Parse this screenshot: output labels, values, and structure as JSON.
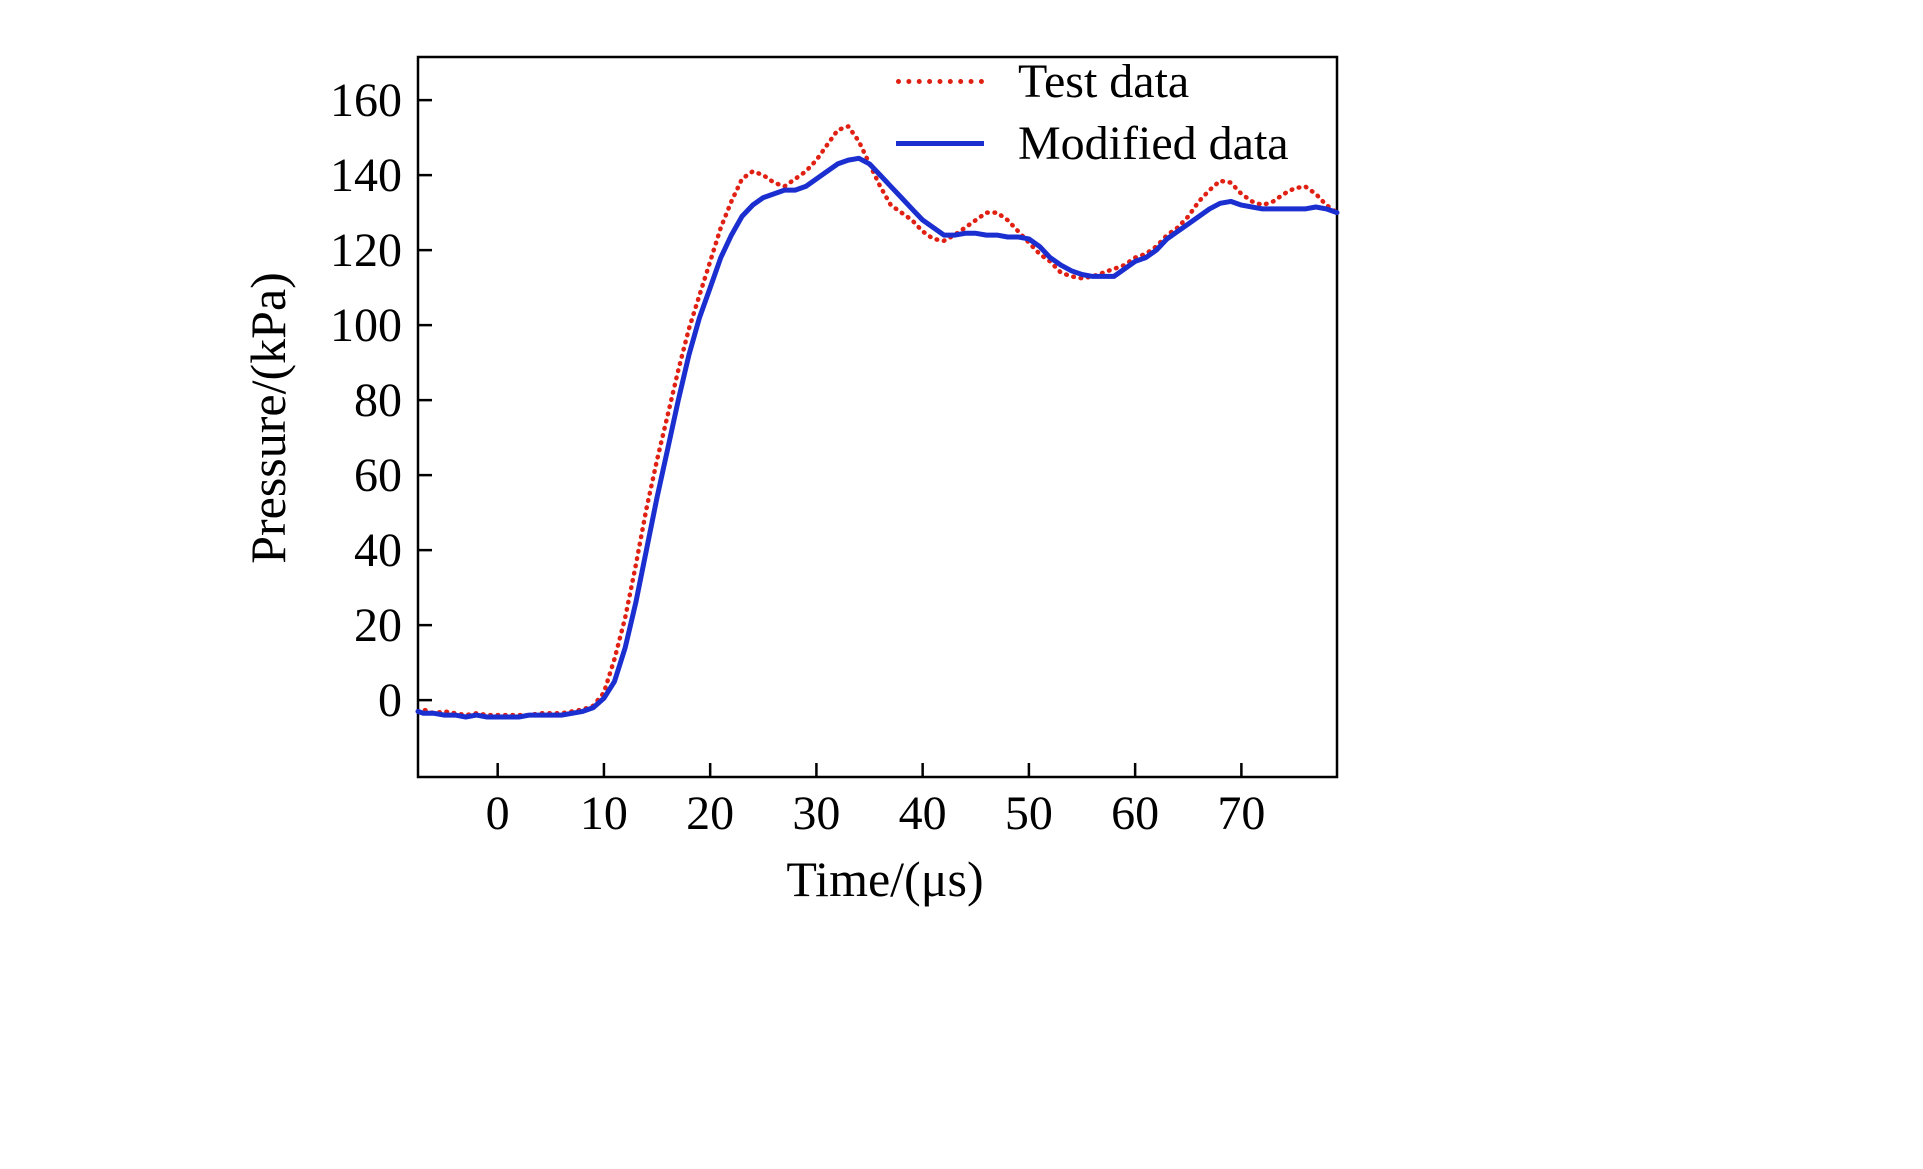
{
  "chart_data": {
    "type": "line",
    "title": "",
    "xlabel": "Time/(μs)",
    "ylabel": "Pressure/(kPa)",
    "xlim": [
      -7.5,
      79
    ],
    "ylim": [
      -20.5,
      171.5
    ],
    "xticks": [
      0,
      10,
      20,
      30,
      40,
      50,
      60,
      70
    ],
    "yticks": [
      0,
      20,
      40,
      60,
      80,
      100,
      120,
      140,
      160
    ],
    "grid": false,
    "legend_position": "top-right-inside",
    "series": [
      {
        "name": "Test data",
        "color": "#e02012",
        "line_style": "dotted",
        "points": [
          [
            -7.5,
            -3
          ],
          [
            -7,
            -2.5
          ],
          [
            -6,
            -3.5
          ],
          [
            -5,
            -3
          ],
          [
            -4,
            -3.5
          ],
          [
            -3,
            -4
          ],
          [
            -2,
            -3.5
          ],
          [
            -1,
            -4
          ],
          [
            0,
            -4
          ],
          [
            1,
            -4
          ],
          [
            2,
            -4
          ],
          [
            3,
            -4
          ],
          [
            4,
            -3.5
          ],
          [
            5,
            -3.5
          ],
          [
            6,
            -3.5
          ],
          [
            7,
            -3
          ],
          [
            8,
            -2.5
          ],
          [
            9,
            -1.5
          ],
          [
            10,
            2
          ],
          [
            11,
            11
          ],
          [
            12,
            22
          ],
          [
            13,
            36
          ],
          [
            14,
            51
          ],
          [
            15,
            64
          ],
          [
            16,
            76
          ],
          [
            17,
            88
          ],
          [
            18,
            99
          ],
          [
            19,
            108
          ],
          [
            20,
            117
          ],
          [
            21,
            126
          ],
          [
            22,
            133
          ],
          [
            23,
            139
          ],
          [
            24,
            141
          ],
          [
            25,
            140
          ],
          [
            26,
            138
          ],
          [
            27,
            137
          ],
          [
            28,
            139
          ],
          [
            29,
            141
          ],
          [
            30,
            144
          ],
          [
            31,
            148
          ],
          [
            32,
            152
          ],
          [
            33,
            153
          ],
          [
            34,
            149
          ],
          [
            35,
            143
          ],
          [
            36,
            137
          ],
          [
            37,
            132
          ],
          [
            38,
            130
          ],
          [
            39,
            128
          ],
          [
            40,
            125
          ],
          [
            41,
            123
          ],
          [
            42,
            122.5
          ],
          [
            43,
            124
          ],
          [
            44,
            126
          ],
          [
            45,
            128
          ],
          [
            46,
            130
          ],
          [
            47,
            130
          ],
          [
            48,
            128
          ],
          [
            49,
            125
          ],
          [
            50,
            122
          ],
          [
            51,
            119
          ],
          [
            52,
            117
          ],
          [
            53,
            114
          ],
          [
            54,
            113
          ],
          [
            55,
            112.5
          ],
          [
            56,
            113
          ],
          [
            57,
            114
          ],
          [
            58,
            115
          ],
          [
            59,
            116
          ],
          [
            60,
            118
          ],
          [
            61,
            119
          ],
          [
            62,
            121
          ],
          [
            63,
            124
          ],
          [
            64,
            126
          ],
          [
            65,
            129
          ],
          [
            66,
            133
          ],
          [
            67,
            136
          ],
          [
            68,
            138.5
          ],
          [
            69,
            138
          ],
          [
            70,
            135
          ],
          [
            71,
            133
          ],
          [
            72,
            132
          ],
          [
            73,
            133
          ],
          [
            74,
            135
          ],
          [
            75,
            136.5
          ],
          [
            76,
            137
          ],
          [
            77,
            135
          ],
          [
            78,
            132
          ],
          [
            79,
            130
          ]
        ]
      },
      {
        "name": "Modified data",
        "color": "#1b2fd0",
        "line_style": "solid",
        "points": [
          [
            -7.5,
            -3
          ],
          [
            -7,
            -3.5
          ],
          [
            -6,
            -3.5
          ],
          [
            -5,
            -4
          ],
          [
            -4,
            -4
          ],
          [
            -3,
            -4.5
          ],
          [
            -2,
            -4
          ],
          [
            -1,
            -4.5
          ],
          [
            0,
            -4.5
          ],
          [
            1,
            -4.5
          ],
          [
            2,
            -4.5
          ],
          [
            3,
            -4
          ],
          [
            4,
            -4
          ],
          [
            5,
            -4
          ],
          [
            6,
            -4
          ],
          [
            7,
            -3.5
          ],
          [
            8,
            -3
          ],
          [
            9,
            -2
          ],
          [
            10,
            0.5
          ],
          [
            11,
            5
          ],
          [
            12,
            14
          ],
          [
            13,
            26
          ],
          [
            14,
            40
          ],
          [
            15,
            54
          ],
          [
            16,
            67
          ],
          [
            17,
            80
          ],
          [
            18,
            92
          ],
          [
            19,
            102
          ],
          [
            20,
            110
          ],
          [
            21,
            118
          ],
          [
            22,
            124
          ],
          [
            23,
            129
          ],
          [
            24,
            132
          ],
          [
            25,
            134
          ],
          [
            26,
            135
          ],
          [
            27,
            136
          ],
          [
            28,
            136
          ],
          [
            29,
            137
          ],
          [
            30,
            139
          ],
          [
            31,
            141
          ],
          [
            32,
            143
          ],
          [
            33,
            144
          ],
          [
            34,
            144.5
          ],
          [
            35,
            143
          ],
          [
            36,
            140
          ],
          [
            37,
            137
          ],
          [
            38,
            134
          ],
          [
            39,
            131
          ],
          [
            40,
            128
          ],
          [
            41,
            126
          ],
          [
            42,
            124
          ],
          [
            43,
            124
          ],
          [
            44,
            124.5
          ],
          [
            45,
            124.5
          ],
          [
            46,
            124
          ],
          [
            47,
            124
          ],
          [
            48,
            123.5
          ],
          [
            49,
            123.5
          ],
          [
            50,
            123
          ],
          [
            51,
            121
          ],
          [
            52,
            118
          ],
          [
            53,
            116
          ],
          [
            54,
            114.5
          ],
          [
            55,
            113.5
          ],
          [
            56,
            113
          ],
          [
            57,
            113
          ],
          [
            58,
            113
          ],
          [
            59,
            115
          ],
          [
            60,
            117
          ],
          [
            61,
            118
          ],
          [
            62,
            120
          ],
          [
            63,
            123
          ],
          [
            64,
            125
          ],
          [
            65,
            127
          ],
          [
            66,
            129
          ],
          [
            67,
            131
          ],
          [
            68,
            132.5
          ],
          [
            69,
            133
          ],
          [
            70,
            132
          ],
          [
            71,
            131.5
          ],
          [
            72,
            131
          ],
          [
            73,
            131
          ],
          [
            74,
            131
          ],
          [
            75,
            131
          ],
          [
            76,
            131
          ],
          [
            77,
            131.5
          ],
          [
            78,
            131
          ],
          [
            79,
            130
          ]
        ]
      }
    ]
  }
}
